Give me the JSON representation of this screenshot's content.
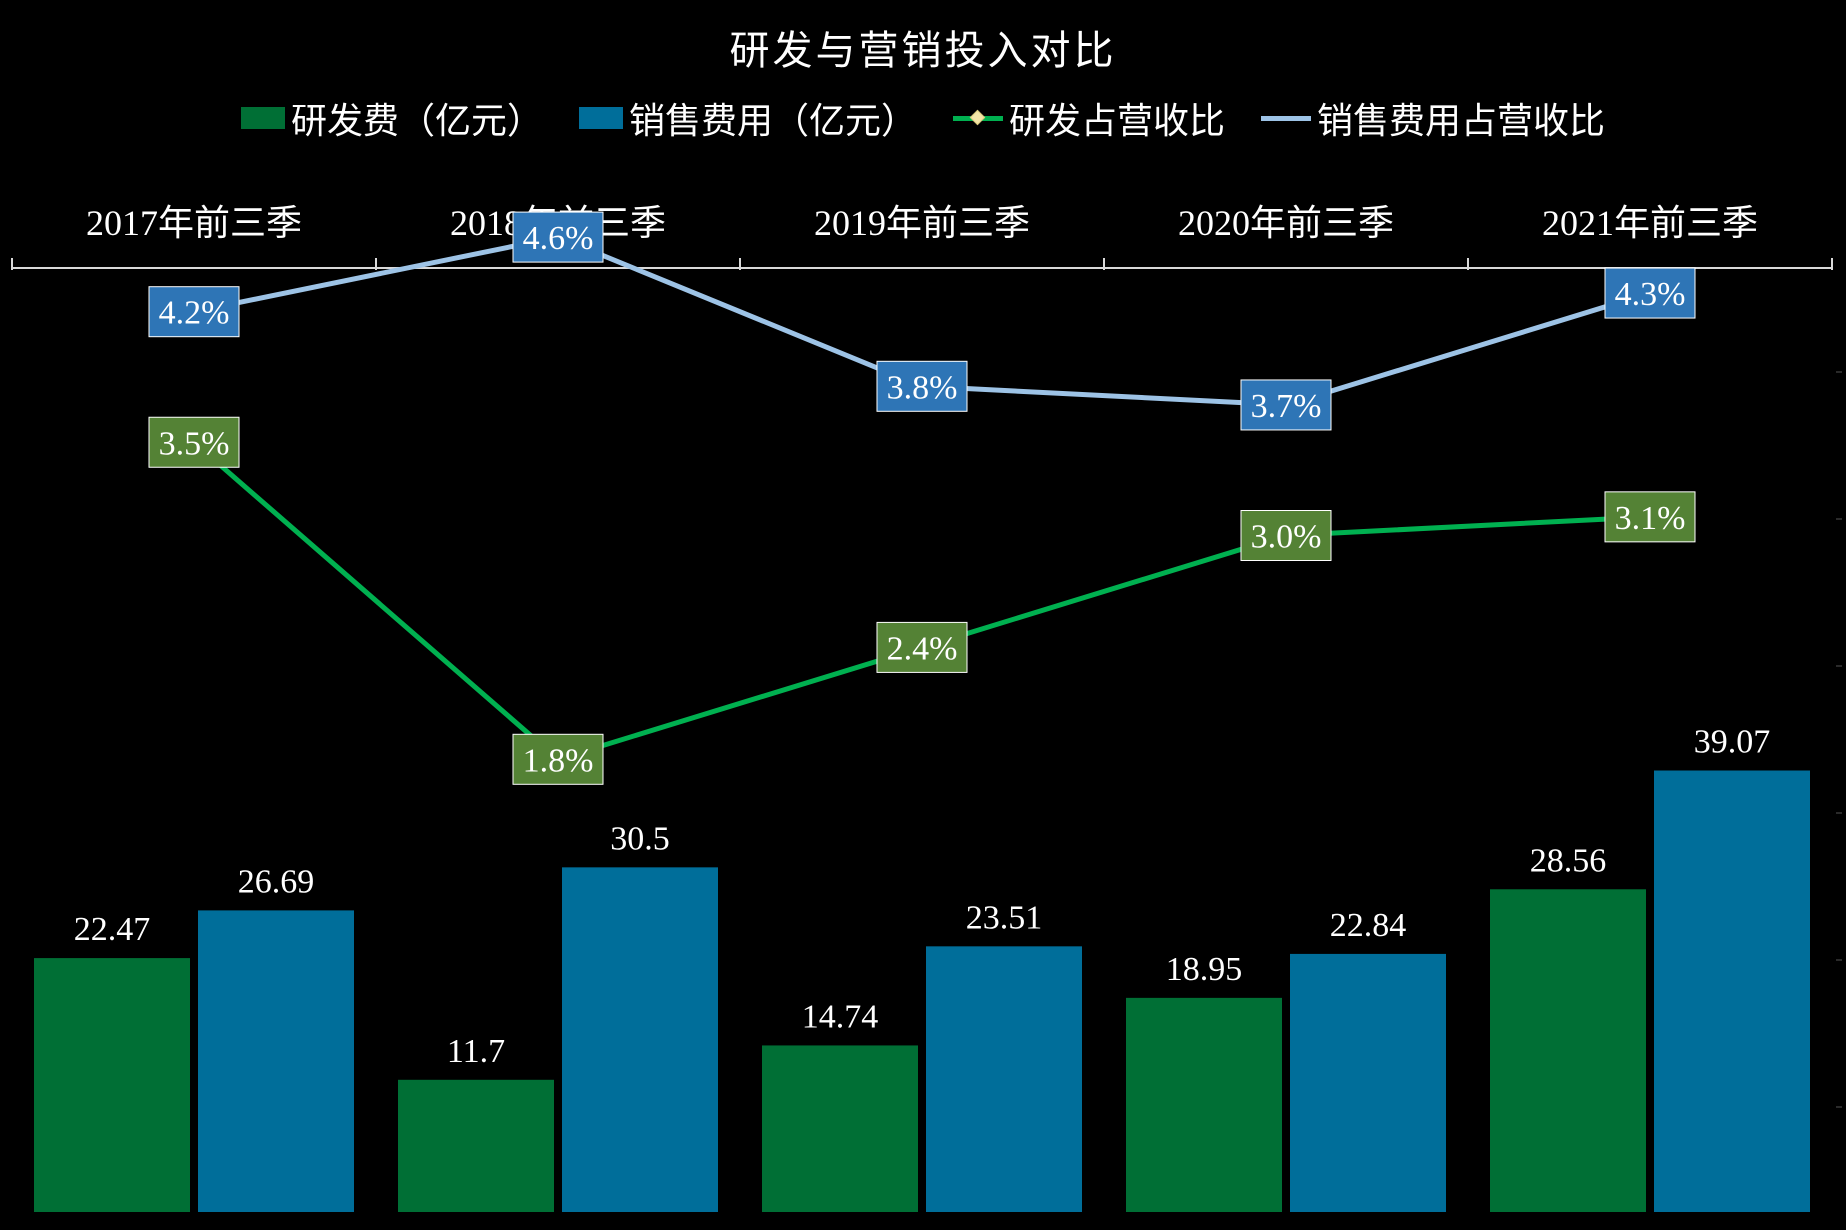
{
  "chart_data": {
    "type": "bar",
    "title": "研发与营销投入对比",
    "categories": [
      "2017年前三季",
      "2018年前三季",
      "2019年前三季",
      "2020年前三季",
      "2021年前三季"
    ],
    "series": [
      {
        "name": "研发费（亿元）",
        "kind": "bar",
        "color": "#006f35",
        "values": [
          22.47,
          11.7,
          14.74,
          18.95,
          28.56
        ],
        "labels": [
          "22.47",
          "11.7",
          "14.74",
          "18.95",
          "28.56"
        ]
      },
      {
        "name": "销售费用（亿元）",
        "kind": "bar",
        "color": "#006e9a",
        "values": [
          26.69,
          30.5,
          23.51,
          22.84,
          39.07
        ],
        "labels": [
          "26.69",
          "30.5",
          "23.51",
          "22.84",
          "39.07"
        ]
      },
      {
        "name": "研发占营收比",
        "kind": "line",
        "color": "#00b050",
        "label_bg": "#548235",
        "values": [
          3.5,
          1.8,
          2.4,
          3.0,
          3.1
        ],
        "labels": [
          "3.5%",
          "1.8%",
          "2.4%",
          "3.0%",
          "3.1%"
        ]
      },
      {
        "name": "销售费用占营收比",
        "kind": "line",
        "color": "#9dc3e6",
        "label_bg": "#2e75b6",
        "values": [
          4.2,
          4.6,
          3.8,
          3.7,
          4.3
        ],
        "labels": [
          "4.2%",
          "4.6%",
          "3.8%",
          "3.7%",
          "4.3%"
        ]
      }
    ],
    "xaxis_position": "top",
    "legend_position": "top",
    "grid": false
  }
}
